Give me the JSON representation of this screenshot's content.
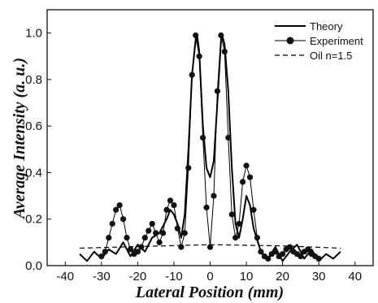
{
  "chart_data": {
    "type": "line",
    "title": "",
    "xlabel": "Lateral Position (mm)",
    "ylabel": "Average Intensity (a. u.)",
    "xlim": [
      -45,
      45
    ],
    "ylim": [
      0,
      1.1
    ],
    "x_ticks": [
      -40,
      -30,
      -20,
      -10,
      0,
      10,
      20,
      30,
      40
    ],
    "y_ticks": [
      0.0,
      0.2,
      0.4,
      0.6,
      0.8,
      1.0
    ],
    "x_tick_labels": [
      "-40",
      "-30",
      "-20",
      "-10",
      "0",
      "10",
      "20",
      "30",
      "40"
    ],
    "y_tick_labels": [
      "0.0",
      "0.2",
      "0.4",
      "0.6",
      "0.8",
      "1.0"
    ],
    "grid": false,
    "legend_position": "top-right",
    "series": [
      {
        "name": "Theory",
        "style": "solid",
        "color": "#000000",
        "x": [
          -36,
          -34,
          -32,
          -30,
          -28,
          -26,
          -24,
          -22,
          -20,
          -18,
          -16,
          -14,
          -12,
          -11,
          -10,
          -9,
          -8,
          -7,
          -6,
          -5,
          -4,
          -3.5,
          -3,
          -2,
          -1,
          0,
          1,
          2,
          3,
          3.5,
          4,
          5,
          6,
          7,
          8,
          9,
          10,
          11,
          12,
          14,
          16,
          18,
          20,
          22,
          24,
          26,
          28,
          30,
          32,
          34,
          36
        ],
        "y": [
          0.05,
          0.02,
          0.06,
          0.03,
          0.07,
          0.05,
          0.1,
          0.04,
          0.09,
          0.06,
          0.12,
          0.14,
          0.2,
          0.24,
          0.22,
          0.18,
          0.12,
          0.22,
          0.5,
          0.82,
          0.97,
          0.98,
          0.92,
          0.6,
          0.42,
          0.38,
          0.45,
          0.7,
          0.97,
          0.98,
          0.95,
          0.75,
          0.42,
          0.18,
          0.12,
          0.2,
          0.3,
          0.26,
          0.16,
          0.06,
          0.03,
          0.08,
          0.02,
          0.06,
          0.09,
          0.03,
          0.07,
          0.02,
          0.05,
          0.03,
          0.06
        ]
      },
      {
        "name": "Experiment",
        "style": "dot-line",
        "color": "#000000",
        "x": [
          -30,
          -29,
          -28,
          -27,
          -26,
          -25,
          -24,
          -23,
          -22,
          -21,
          -20,
          -19,
          -18,
          -17,
          -16,
          -15,
          -14,
          -13,
          -12,
          -11,
          -10,
          -9,
          -8,
          -7,
          -6,
          -5,
          -4,
          -3,
          -2,
          -1,
          0,
          1,
          2,
          3,
          4,
          5,
          6,
          7,
          8,
          9,
          10,
          11,
          12,
          13,
          14,
          15,
          16,
          17,
          18,
          19,
          20,
          21,
          22,
          23,
          24,
          25,
          26,
          27,
          28,
          29,
          30
        ],
        "y": [
          0.04,
          0.06,
          0.12,
          0.18,
          0.24,
          0.26,
          0.2,
          0.12,
          0.07,
          0.05,
          0.06,
          0.08,
          0.12,
          0.15,
          0.18,
          0.14,
          0.1,
          0.14,
          0.24,
          0.28,
          0.26,
          0.16,
          0.08,
          0.14,
          0.42,
          0.82,
          0.99,
          0.9,
          0.55,
          0.25,
          0.08,
          0.3,
          0.75,
          0.99,
          0.92,
          0.55,
          0.22,
          0.12,
          0.18,
          0.36,
          0.43,
          0.38,
          0.24,
          0.12,
          0.06,
          0.04,
          0.03,
          0.05,
          0.06,
          0.04,
          0.05,
          0.07,
          0.08,
          0.06,
          0.05,
          0.04,
          0.06,
          0.07,
          0.05,
          0.04,
          0.03
        ]
      },
      {
        "name": "Oil n=1.5",
        "style": "dashed",
        "color": "#000000",
        "x": [
          -36,
          -20,
          0,
          20,
          36
        ],
        "y": [
          0.075,
          0.082,
          0.09,
          0.085,
          0.075
        ]
      }
    ]
  }
}
